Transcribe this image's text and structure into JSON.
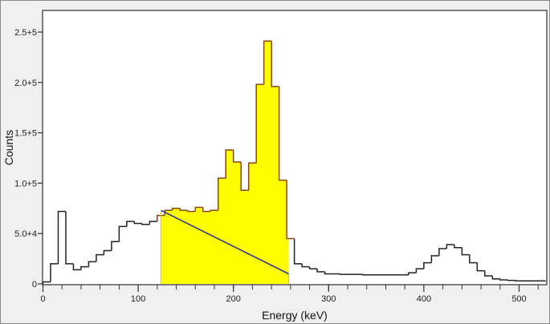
{
  "chart_data": {
    "type": "bar",
    "subtype": "step-histogram",
    "title": "",
    "xlabel": "Energy (keV)",
    "ylabel": "Counts",
    "xlim": [
      0,
      530
    ],
    "ylim": [
      0,
      275000
    ],
    "grid": false,
    "legend": null,
    "x_ticks": [
      0,
      100,
      200,
      300,
      400,
      500
    ],
    "x_tick_labels": [
      "0",
      "100",
      "200",
      "300",
      "400",
      "500"
    ],
    "x_minor_step": 20,
    "y_ticks": [
      0,
      50000,
      100000,
      150000,
      200000,
      250000
    ],
    "y_tick_labels": [
      "0",
      "5.0+4",
      "1.0+5",
      "1.5+5",
      "2.0+5",
      "2.5+5"
    ],
    "bin_width_keV": 8,
    "bins": [
      {
        "e": 0,
        "c": 2000
      },
      {
        "e": 8,
        "c": 20000
      },
      {
        "e": 16,
        "c": 72000
      },
      {
        "e": 24,
        "c": 20000
      },
      {
        "e": 32,
        "c": 14000
      },
      {
        "e": 40,
        "c": 17000
      },
      {
        "e": 48,
        "c": 22000
      },
      {
        "e": 56,
        "c": 29000
      },
      {
        "e": 64,
        "c": 33000
      },
      {
        "e": 72,
        "c": 42000
      },
      {
        "e": 80,
        "c": 57000
      },
      {
        "e": 88,
        "c": 62000
      },
      {
        "e": 96,
        "c": 60000
      },
      {
        "e": 104,
        "c": 59000
      },
      {
        "e": 112,
        "c": 62000
      },
      {
        "e": 120,
        "c": 68000
      },
      {
        "e": 128,
        "c": 73000
      },
      {
        "e": 136,
        "c": 75000
      },
      {
        "e": 144,
        "c": 73000
      },
      {
        "e": 152,
        "c": 72000
      },
      {
        "e": 160,
        "c": 76000
      },
      {
        "e": 168,
        "c": 72000
      },
      {
        "e": 176,
        "c": 73000
      },
      {
        "e": 184,
        "c": 105000
      },
      {
        "e": 192,
        "c": 133000
      },
      {
        "e": 200,
        "c": 121000
      },
      {
        "e": 208,
        "c": 93000
      },
      {
        "e": 216,
        "c": 120000
      },
      {
        "e": 224,
        "c": 198000
      },
      {
        "e": 232,
        "c": 241000
      },
      {
        "e": 240,
        "c": 196000
      },
      {
        "e": 248,
        "c": 103000
      },
      {
        "e": 256,
        "c": 45000
      },
      {
        "e": 264,
        "c": 20000
      },
      {
        "e": 272,
        "c": 17000
      },
      {
        "e": 280,
        "c": 15000
      },
      {
        "e": 288,
        "c": 12000
      },
      {
        "e": 296,
        "c": 10000
      },
      {
        "e": 304,
        "c": 10000
      },
      {
        "e": 312,
        "c": 9500
      },
      {
        "e": 320,
        "c": 9500
      },
      {
        "e": 328,
        "c": 9500
      },
      {
        "e": 336,
        "c": 9000
      },
      {
        "e": 344,
        "c": 9000
      },
      {
        "e": 352,
        "c": 9000
      },
      {
        "e": 360,
        "c": 9000
      },
      {
        "e": 368,
        "c": 9000
      },
      {
        "e": 376,
        "c": 9000
      },
      {
        "e": 384,
        "c": 11000
      },
      {
        "e": 392,
        "c": 15000
      },
      {
        "e": 400,
        "c": 21000
      },
      {
        "e": 408,
        "c": 28000
      },
      {
        "e": 416,
        "c": 35000
      },
      {
        "e": 424,
        "c": 39000
      },
      {
        "e": 432,
        "c": 36000
      },
      {
        "e": 440,
        "c": 29000
      },
      {
        "e": 448,
        "c": 21000
      },
      {
        "e": 456,
        "c": 13000
      },
      {
        "e": 464,
        "c": 8000
      },
      {
        "e": 472,
        "c": 5000
      },
      {
        "e": 480,
        "c": 4000
      },
      {
        "e": 488,
        "c": 3500
      },
      {
        "e": 496,
        "c": 3000
      },
      {
        "e": 504,
        "c": 3000
      },
      {
        "e": 512,
        "c": 3000
      },
      {
        "e": 520,
        "c": 3000
      }
    ],
    "roi": {
      "label": "highlighted region of interest",
      "start_keV": 124,
      "end_keV": 258,
      "fill_color": "#ffff00",
      "outline_color": "#8b4513",
      "background_line": {
        "x1": 124,
        "y1": 73000,
        "x2": 258,
        "y2": 10000,
        "color": "#2a2a8a"
      }
    },
    "line_color": "#222222"
  }
}
